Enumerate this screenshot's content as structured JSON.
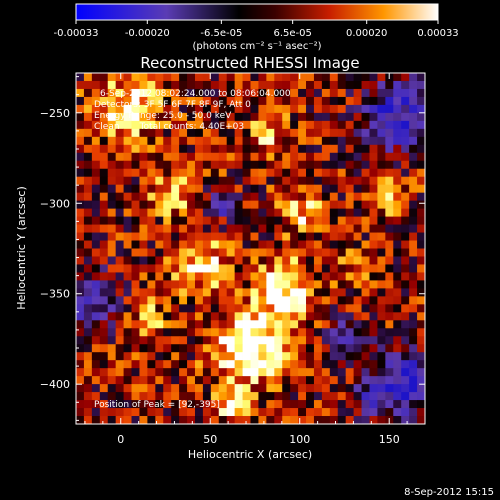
{
  "colorbar": {
    "tick_labels": [
      "-0.00033",
      "-0.00020",
      "-6.5e-05",
      "6.5e-05",
      "0.00020",
      "0.00033"
    ],
    "tick_values": [
      -0.00033,
      -0.0002,
      -6.5e-05,
      6.5e-05,
      0.0002,
      0.00033
    ],
    "unit_label": "(photons cm⁻² s⁻¹ asec⁻²)",
    "range": [
      -0.00033,
      0.00033
    ]
  },
  "chart_data": {
    "type": "heatmap",
    "title": "Reconstructed RHESSI Image",
    "xlabel": "Heliocentric X (arcsec)",
    "ylabel": "Heliocentric Y (arcsec)",
    "xlim": [
      -25,
      170
    ],
    "ylim": [
      -422,
      -228
    ],
    "x_ticks": [
      0,
      50,
      100,
      150
    ],
    "y_ticks": [
      -250,
      -300,
      -350,
      -400
    ],
    "x_tick_labels": [
      "0",
      "50",
      "100",
      "150"
    ],
    "y_tick_labels": [
      "−250",
      "−300",
      "−350",
      "−400"
    ],
    "peak": [
      92,
      -395
    ],
    "annotations": {
      "time": "6-Sep-2012 08:02:24.000 to 08:06:04.000",
      "detectors": "Detectors: 3F 5F 6F 7F 8F 9F, Att 0",
      "energy": "Energy Range: 25.0 - 50.0 keV",
      "method": "Clean       Total counts: 4.40E+03",
      "peak_text": "Position of Peak = [92,-395]"
    }
  },
  "footer": {
    "date": "8-Sep-2012 15:15"
  }
}
